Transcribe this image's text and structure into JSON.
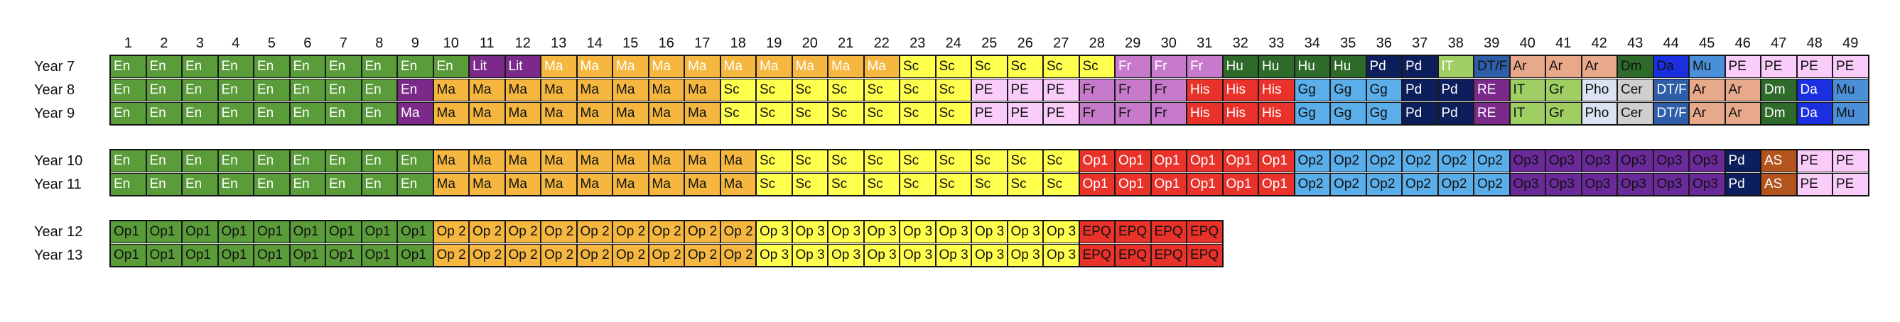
{
  "columns": [
    "1",
    "2",
    "3",
    "4",
    "5",
    "6",
    "7",
    "8",
    "9",
    "10",
    "11",
    "12",
    "13",
    "14",
    "15",
    "16",
    "17",
    "18",
    "19",
    "20",
    "21",
    "22",
    "23",
    "24",
    "25",
    "26",
    "27",
    "28",
    "29",
    "30",
    "31",
    "32",
    "33",
    "34",
    "35",
    "36",
    "37",
    "38",
    "39",
    "40",
    "41",
    "42",
    "43",
    "44",
    "45",
    "46",
    "47",
    "48",
    "49"
  ],
  "colors": {
    "En": {
      "bg": "#5a9b3a",
      "fg": "#ffffff"
    },
    "Lit": {
      "bg": "#7b2a8a",
      "fg": "#ffffff"
    },
    "MaWhite": {
      "bg": "#f5b73f",
      "fg": "#ffffff"
    },
    "Ma": {
      "bg": "#f5b73f",
      "fg": "#111111"
    },
    "Sc": {
      "bg": "#ffff4d",
      "fg": "#111111"
    },
    "FrWhite": {
      "bg": "#c77acb",
      "fg": "#ffffff"
    },
    "Fr": {
      "bg": "#c77acb",
      "fg": "#111111"
    },
    "Hu": {
      "bg": "#2e6b2a",
      "fg": "#ffffff"
    },
    "Pd": {
      "bg": "#0d1e5c",
      "fg": "#ffffff"
    },
    "IT": {
      "bg": "#9fcf63",
      "fg": "#ffffff"
    },
    "IT9": {
      "bg": "#9fcf63",
      "fg": "#111111"
    },
    "DTF": {
      "bg": "#2f5ea8",
      "fg": "#111111"
    },
    "DTF8": {
      "bg": "#2f5ea8",
      "fg": "#ffffff"
    },
    "Ar": {
      "bg": "#e8a88a",
      "fg": "#111111"
    },
    "Dm": {
      "bg": "#2e6b2a",
      "fg": "#111111"
    },
    "Dm8": {
      "bg": "#2e6b2a",
      "fg": "#ffffff"
    },
    "Da": {
      "bg": "#1a2fe0",
      "fg": "#111111"
    },
    "Da8": {
      "bg": "#1a2fe0",
      "fg": "#ffffff"
    },
    "Mu": {
      "bg": "#4a8fd8",
      "fg": "#111111"
    },
    "PE": {
      "bg": "#f9ccf9",
      "fg": "#111111"
    },
    "His": {
      "bg": "#e8322a",
      "fg": "#ffffff"
    },
    "Gg": {
      "bg": "#5aaeea",
      "fg": "#111111"
    },
    "RE": {
      "bg": "#7b2a8a",
      "fg": "#ffffff"
    },
    "Gr": {
      "bg": "#9fcf63",
      "fg": "#111111"
    },
    "Pho": {
      "bg": "#dbe3f2",
      "fg": "#111111"
    },
    "Cer": {
      "bg": "#cfcfcf",
      "fg": "#111111"
    },
    "Ma9": {
      "bg": "#7b2a8a",
      "fg": "#ffffff"
    },
    "Op1": {
      "bg": "#e8322a",
      "fg": "#ffffff"
    },
    "Op2": {
      "bg": "#5aaeea",
      "fg": "#111111"
    },
    "Op3": {
      "bg": "#6a2a9a",
      "fg": "#111111"
    },
    "AS": {
      "bg": "#b3541e",
      "fg": "#ffffff"
    },
    "Op1_6": {
      "bg": "#5a9b3a",
      "fg": "#111111"
    },
    "Op2_6": {
      "bg": "#f5b73f",
      "fg": "#111111"
    },
    "Op3_6": {
      "bg": "#ffff4d",
      "fg": "#111111"
    },
    "EPQ": {
      "bg": "#e8322a",
      "fg": "#111111"
    }
  },
  "rows": [
    {
      "label": "Year 7",
      "cells": [
        [
          "En",
          "En"
        ],
        [
          "En",
          "En"
        ],
        [
          "En",
          "En"
        ],
        [
          "En",
          "En"
        ],
        [
          "En",
          "En"
        ],
        [
          "En",
          "En"
        ],
        [
          "En",
          "En"
        ],
        [
          "En",
          "En"
        ],
        [
          "En",
          "En"
        ],
        [
          "En",
          "En"
        ],
        [
          "Lit",
          "Lit"
        ],
        [
          "Lit",
          "Lit"
        ],
        [
          "Ma",
          "MaWhite"
        ],
        [
          "Ma",
          "MaWhite"
        ],
        [
          "Ma",
          "MaWhite"
        ],
        [
          "Ma",
          "MaWhite"
        ],
        [
          "Ma",
          "MaWhite"
        ],
        [
          "Ma",
          "MaWhite"
        ],
        [
          "Ma",
          "MaWhite"
        ],
        [
          "Ma",
          "MaWhite"
        ],
        [
          "Ma",
          "MaWhite"
        ],
        [
          "Ma",
          "MaWhite"
        ],
        [
          "Sc",
          "Sc"
        ],
        [
          "Sc",
          "Sc"
        ],
        [
          "Sc",
          "Sc"
        ],
        [
          "Sc",
          "Sc"
        ],
        [
          "Sc",
          "Sc"
        ],
        [
          "Sc",
          "Sc"
        ],
        [
          "Fr",
          "FrWhite"
        ],
        [
          "Fr",
          "FrWhite"
        ],
        [
          "Fr",
          "FrWhite"
        ],
        [
          "Hu",
          "Hu"
        ],
        [
          "Hu",
          "Hu"
        ],
        [
          "Hu",
          "Hu"
        ],
        [
          "Hu",
          "Hu"
        ],
        [
          "Pd",
          "Pd"
        ],
        [
          "Pd",
          "Pd"
        ],
        [
          "IT",
          "IT"
        ],
        [
          "DT/F",
          "DTF"
        ],
        [
          "Ar",
          "Ar"
        ],
        [
          "Ar",
          "Ar"
        ],
        [
          "Ar",
          "Ar"
        ],
        [
          "Dm",
          "Dm"
        ],
        [
          "Da",
          "Da"
        ],
        [
          "Mu",
          "Mu"
        ],
        [
          "PE",
          "PE"
        ],
        [
          "PE",
          "PE"
        ],
        [
          "PE",
          "PE"
        ],
        [
          "PE",
          "PE"
        ]
      ]
    },
    {
      "label": "Year 8",
      "cells": [
        [
          "En",
          "En"
        ],
        [
          "En",
          "En"
        ],
        [
          "En",
          "En"
        ],
        [
          "En",
          "En"
        ],
        [
          "En",
          "En"
        ],
        [
          "En",
          "En"
        ],
        [
          "En",
          "En"
        ],
        [
          "En",
          "En"
        ],
        [
          "En",
          "Ma9"
        ],
        [
          "Ma",
          "Ma"
        ],
        [
          "Ma",
          "Ma"
        ],
        [
          "Ma",
          "Ma"
        ],
        [
          "Ma",
          "Ma"
        ],
        [
          "Ma",
          "Ma"
        ],
        [
          "Ma",
          "Ma"
        ],
        [
          "Ma",
          "Ma"
        ],
        [
          "Ma",
          "Ma"
        ],
        [
          "Sc",
          "Sc"
        ],
        [
          "Sc",
          "Sc"
        ],
        [
          "Sc",
          "Sc"
        ],
        [
          "Sc",
          "Sc"
        ],
        [
          "Sc",
          "Sc"
        ],
        [
          "Sc",
          "Sc"
        ],
        [
          "Sc",
          "Sc"
        ],
        [
          "PE",
          "PE"
        ],
        [
          "PE",
          "PE"
        ],
        [
          "PE",
          "PE"
        ],
        [
          "Fr",
          "Fr"
        ],
        [
          "Fr",
          "Fr"
        ],
        [
          "Fr",
          "Fr"
        ],
        [
          "His",
          "His"
        ],
        [
          "His",
          "His"
        ],
        [
          "His",
          "His"
        ],
        [
          "Gg",
          "Gg"
        ],
        [
          "Gg",
          "Gg"
        ],
        [
          "Gg",
          "Gg"
        ],
        [
          "Pd",
          "Pd"
        ],
        [
          "Pd",
          "Pd"
        ],
        [
          "RE",
          "RE"
        ],
        [
          "IT",
          "IT9"
        ],
        [
          "Gr",
          "Gr"
        ],
        [
          "Pho",
          "Pho"
        ],
        [
          "Cer",
          "Cer"
        ],
        [
          "DT/F",
          "DTF8"
        ],
        [
          "Ar",
          "Ar"
        ],
        [
          "Ar",
          "Ar"
        ],
        [
          "Dm",
          "Dm8"
        ],
        [
          "Da",
          "Da8"
        ],
        [
          "Mu",
          "Mu"
        ]
      ]
    },
    {
      "label": "Year 9",
      "cells": [
        [
          "En",
          "En"
        ],
        [
          "En",
          "En"
        ],
        [
          "En",
          "En"
        ],
        [
          "En",
          "En"
        ],
        [
          "En",
          "En"
        ],
        [
          "En",
          "En"
        ],
        [
          "En",
          "En"
        ],
        [
          "En",
          "En"
        ],
        [
          "Ma",
          "Ma9"
        ],
        [
          "Ma",
          "Ma"
        ],
        [
          "Ma",
          "Ma"
        ],
        [
          "Ma",
          "Ma"
        ],
        [
          "Ma",
          "Ma"
        ],
        [
          "Ma",
          "Ma"
        ],
        [
          "Ma",
          "Ma"
        ],
        [
          "Ma",
          "Ma"
        ],
        [
          "Ma",
          "Ma"
        ],
        [
          "Sc",
          "Sc"
        ],
        [
          "Sc",
          "Sc"
        ],
        [
          "Sc",
          "Sc"
        ],
        [
          "Sc",
          "Sc"
        ],
        [
          "Sc",
          "Sc"
        ],
        [
          "Sc",
          "Sc"
        ],
        [
          "Sc",
          "Sc"
        ],
        [
          "PE",
          "PE"
        ],
        [
          "PE",
          "PE"
        ],
        [
          "PE",
          "PE"
        ],
        [
          "Fr",
          "Fr"
        ],
        [
          "Fr",
          "Fr"
        ],
        [
          "Fr",
          "Fr"
        ],
        [
          "His",
          "His"
        ],
        [
          "His",
          "His"
        ],
        [
          "His",
          "His"
        ],
        [
          "Gg",
          "Gg"
        ],
        [
          "Gg",
          "Gg"
        ],
        [
          "Gg",
          "Gg"
        ],
        [
          "Pd",
          "Pd"
        ],
        [
          "Pd",
          "Pd"
        ],
        [
          "RE",
          "RE"
        ],
        [
          "IT",
          "IT9"
        ],
        [
          "Gr",
          "Gr"
        ],
        [
          "Pho",
          "Pho"
        ],
        [
          "Cer",
          "Cer"
        ],
        [
          "DT/F",
          "DTF8"
        ],
        [
          "Ar",
          "Ar"
        ],
        [
          "Ar",
          "Ar"
        ],
        [
          "Dm",
          "Dm8"
        ],
        [
          "Da",
          "Da8"
        ],
        [
          "Mu",
          "Mu"
        ]
      ]
    },
    {
      "label": "Year 10",
      "cells": [
        [
          "En",
          "En"
        ],
        [
          "En",
          "En"
        ],
        [
          "En",
          "En"
        ],
        [
          "En",
          "En"
        ],
        [
          "En",
          "En"
        ],
        [
          "En",
          "En"
        ],
        [
          "En",
          "En"
        ],
        [
          "En",
          "En"
        ],
        [
          "En",
          "En"
        ],
        [
          "Ma",
          "Ma"
        ],
        [
          "Ma",
          "Ma"
        ],
        [
          "Ma",
          "Ma"
        ],
        [
          "Ma",
          "Ma"
        ],
        [
          "Ma",
          "Ma"
        ],
        [
          "Ma",
          "Ma"
        ],
        [
          "Ma",
          "Ma"
        ],
        [
          "Ma",
          "Ma"
        ],
        [
          "Ma",
          "Ma"
        ],
        [
          "Sc",
          "Sc"
        ],
        [
          "Sc",
          "Sc"
        ],
        [
          "Sc",
          "Sc"
        ],
        [
          "Sc",
          "Sc"
        ],
        [
          "Sc",
          "Sc"
        ],
        [
          "Sc",
          "Sc"
        ],
        [
          "Sc",
          "Sc"
        ],
        [
          "Sc",
          "Sc"
        ],
        [
          "Sc",
          "Sc"
        ],
        [
          "Op1",
          "Op1"
        ],
        [
          "Op1",
          "Op1"
        ],
        [
          "Op1",
          "Op1"
        ],
        [
          "Op1",
          "Op1"
        ],
        [
          "Op1",
          "Op1"
        ],
        [
          "Op1",
          "Op1"
        ],
        [
          "Op2",
          "Op2"
        ],
        [
          "Op2",
          "Op2"
        ],
        [
          "Op2",
          "Op2"
        ],
        [
          "Op2",
          "Op2"
        ],
        [
          "Op2",
          "Op2"
        ],
        [
          "Op2",
          "Op2"
        ],
        [
          "Op3",
          "Op3"
        ],
        [
          "Op3",
          "Op3"
        ],
        [
          "Op3",
          "Op3"
        ],
        [
          "Op3",
          "Op3"
        ],
        [
          "Op3",
          "Op3"
        ],
        [
          "Op3",
          "Op3"
        ],
        [
          "Pd",
          "Pd"
        ],
        [
          "AS",
          "AS"
        ],
        [
          "PE",
          "PE"
        ],
        [
          "PE",
          "PE"
        ]
      ]
    },
    {
      "label": "Year 11",
      "cells": [
        [
          "En",
          "En"
        ],
        [
          "En",
          "En"
        ],
        [
          "En",
          "En"
        ],
        [
          "En",
          "En"
        ],
        [
          "En",
          "En"
        ],
        [
          "En",
          "En"
        ],
        [
          "En",
          "En"
        ],
        [
          "En",
          "En"
        ],
        [
          "En",
          "En"
        ],
        [
          "Ma",
          "Ma"
        ],
        [
          "Ma",
          "Ma"
        ],
        [
          "Ma",
          "Ma"
        ],
        [
          "Ma",
          "Ma"
        ],
        [
          "Ma",
          "Ma"
        ],
        [
          "Ma",
          "Ma"
        ],
        [
          "Ma",
          "Ma"
        ],
        [
          "Ma",
          "Ma"
        ],
        [
          "Ma",
          "Ma"
        ],
        [
          "Sc",
          "Sc"
        ],
        [
          "Sc",
          "Sc"
        ],
        [
          "Sc",
          "Sc"
        ],
        [
          "Sc",
          "Sc"
        ],
        [
          "Sc",
          "Sc"
        ],
        [
          "Sc",
          "Sc"
        ],
        [
          "Sc",
          "Sc"
        ],
        [
          "Sc",
          "Sc"
        ],
        [
          "Sc",
          "Sc"
        ],
        [
          "Op1",
          "Op1"
        ],
        [
          "Op1",
          "Op1"
        ],
        [
          "Op1",
          "Op1"
        ],
        [
          "Op1",
          "Op1"
        ],
        [
          "Op1",
          "Op1"
        ],
        [
          "Op1",
          "Op1"
        ],
        [
          "Op2",
          "Op2"
        ],
        [
          "Op2",
          "Op2"
        ],
        [
          "Op2",
          "Op2"
        ],
        [
          "Op2",
          "Op2"
        ],
        [
          "Op2",
          "Op2"
        ],
        [
          "Op2",
          "Op2"
        ],
        [
          "Op3",
          "Op3"
        ],
        [
          "Op3",
          "Op3"
        ],
        [
          "Op3",
          "Op3"
        ],
        [
          "Op3",
          "Op3"
        ],
        [
          "Op3",
          "Op3"
        ],
        [
          "Op3",
          "Op3"
        ],
        [
          "Pd",
          "Pd"
        ],
        [
          "AS",
          "AS"
        ],
        [
          "PE",
          "PE"
        ],
        [
          "PE",
          "PE"
        ]
      ]
    },
    {
      "label": "Year 12",
      "cells": [
        [
          "Op1",
          "Op1_6"
        ],
        [
          "Op1",
          "Op1_6"
        ],
        [
          "Op1",
          "Op1_6"
        ],
        [
          "Op1",
          "Op1_6"
        ],
        [
          "Op1",
          "Op1_6"
        ],
        [
          "Op1",
          "Op1_6"
        ],
        [
          "Op1",
          "Op1_6"
        ],
        [
          "Op1",
          "Op1_6"
        ],
        [
          "Op1",
          "Op1_6"
        ],
        [
          "Op 2",
          "Op2_6"
        ],
        [
          "Op 2",
          "Op2_6"
        ],
        [
          "Op 2",
          "Op2_6"
        ],
        [
          "Op 2",
          "Op2_6"
        ],
        [
          "Op 2",
          "Op2_6"
        ],
        [
          "Op 2",
          "Op2_6"
        ],
        [
          "Op 2",
          "Op2_6"
        ],
        [
          "Op 2",
          "Op2_6"
        ],
        [
          "Op 2",
          "Op2_6"
        ],
        [
          "Op 3",
          "Op3_6"
        ],
        [
          "Op 3",
          "Op3_6"
        ],
        [
          "Op 3",
          "Op3_6"
        ],
        [
          "Op 3",
          "Op3_6"
        ],
        [
          "Op 3",
          "Op3_6"
        ],
        [
          "Op 3",
          "Op3_6"
        ],
        [
          "Op 3",
          "Op3_6"
        ],
        [
          "Op 3",
          "Op3_6"
        ],
        [
          "Op 3",
          "Op3_6"
        ],
        [
          "EPQ",
          "EPQ"
        ],
        [
          "EPQ",
          "EPQ"
        ],
        [
          "EPQ",
          "EPQ"
        ],
        [
          "EPQ",
          "EPQ"
        ]
      ]
    },
    {
      "label": "Year 13",
      "cells": [
        [
          "Op1",
          "Op1_6"
        ],
        [
          "Op1",
          "Op1_6"
        ],
        [
          "Op1",
          "Op1_6"
        ],
        [
          "Op1",
          "Op1_6"
        ],
        [
          "Op1",
          "Op1_6"
        ],
        [
          "Op1",
          "Op1_6"
        ],
        [
          "Op1",
          "Op1_6"
        ],
        [
          "Op1",
          "Op1_6"
        ],
        [
          "Op1",
          "Op1_6"
        ],
        [
          "Op 2",
          "Op2_6"
        ],
        [
          "Op 2",
          "Op2_6"
        ],
        [
          "Op 2",
          "Op2_6"
        ],
        [
          "Op 2",
          "Op2_6"
        ],
        [
          "Op 2",
          "Op2_6"
        ],
        [
          "Op 2",
          "Op2_6"
        ],
        [
          "Op 2",
          "Op2_6"
        ],
        [
          "Op 2",
          "Op2_6"
        ],
        [
          "Op 2",
          "Op2_6"
        ],
        [
          "Op 3",
          "Op3_6"
        ],
        [
          "Op 3",
          "Op3_6"
        ],
        [
          "Op 3",
          "Op3_6"
        ],
        [
          "Op 3",
          "Op3_6"
        ],
        [
          "Op 3",
          "Op3_6"
        ],
        [
          "Op 3",
          "Op3_6"
        ],
        [
          "Op 3",
          "Op3_6"
        ],
        [
          "Op 3",
          "Op3_6"
        ],
        [
          "Op 3",
          "Op3_6"
        ],
        [
          "EPQ",
          "EPQ"
        ],
        [
          "EPQ",
          "EPQ"
        ],
        [
          "EPQ",
          "EPQ"
        ],
        [
          "EPQ",
          "EPQ"
        ]
      ]
    }
  ]
}
